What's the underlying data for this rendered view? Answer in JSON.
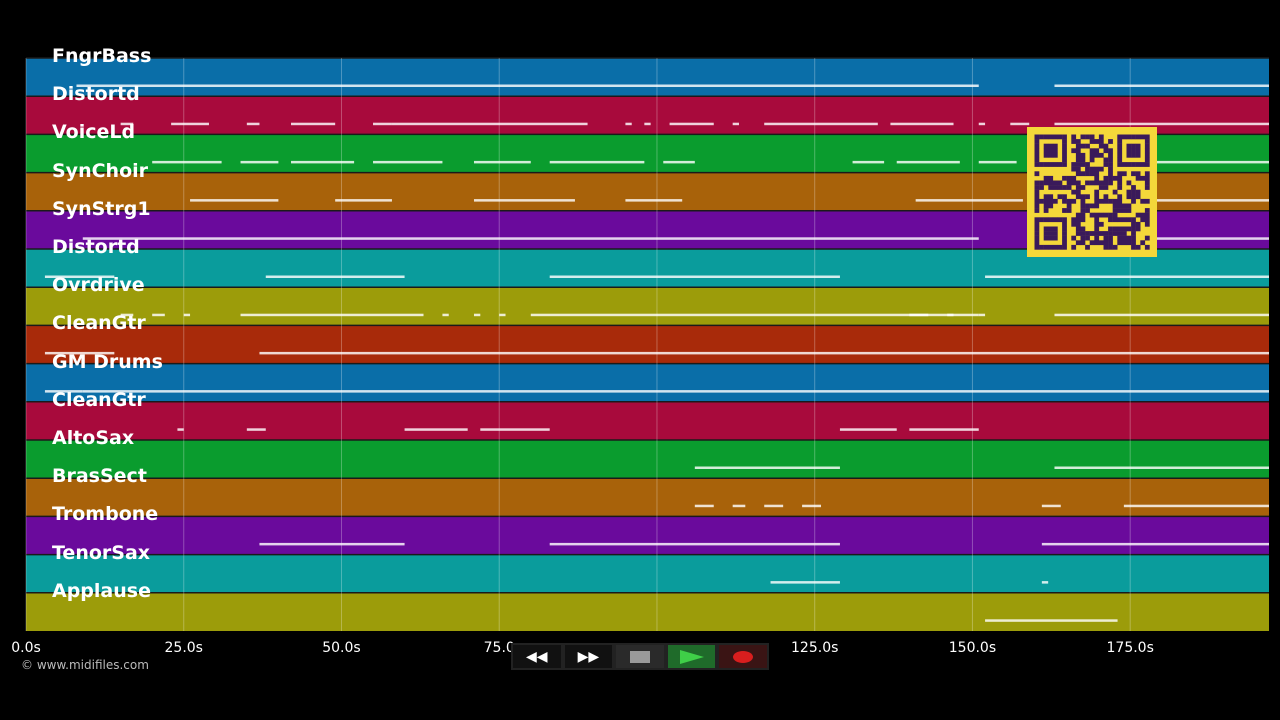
{
  "tracks": [
    {
      "label": "FngrBass",
      "color": "#0a6ea8"
    },
    {
      "label": "Distortd",
      "color": "#a80a3c"
    },
    {
      "label": "VoiceLd",
      "color": "#0a9c2e"
    },
    {
      "label": "SynChoir",
      "color": "#a8620a"
    },
    {
      "label": "SynStrg1",
      "color": "#6a0a9c"
    },
    {
      "label": "Distortd",
      "color": "#0a9c9c"
    },
    {
      "label": "Ovrdrive",
      "color": "#9c9c0a"
    },
    {
      "label": "CleanGtr",
      "color": "#a82a0a"
    },
    {
      "label": "GM Drums",
      "color": "#0a6ea8"
    },
    {
      "label": "CleanGtr",
      "color": "#a80a3c"
    },
    {
      "label": "AltoSax",
      "color": "#0a9c2e"
    },
    {
      "label": "BrasSect",
      "color": "#a8620a"
    },
    {
      "label": "Trombone",
      "color": "#6a0a9c"
    },
    {
      "label": "TenorSax",
      "color": "#0a9c9c"
    },
    {
      "label": "Applause",
      "color": "#9c9c0a"
    }
  ],
  "timeline": {
    "tick_values": [
      0,
      25,
      50,
      75,
      100,
      125,
      150,
      175
    ],
    "tick_labels": [
      "0.0s",
      "25.0s",
      "50.0s",
      "75.0",
      "",
      "125.0s",
      "150.0s",
      "175.0s"
    ],
    "max_seconds": 197
  },
  "copyright": "© www.midifiles.com",
  "transport": {
    "rewind_label": "◀◀",
    "forward_label": "▶▶"
  },
  "notes": [
    {
      "track": 0,
      "segments": [
        [
          8,
          151
        ],
        [
          163,
          197
        ]
      ]
    },
    {
      "track": 1,
      "segments": [
        [
          15,
          17
        ],
        [
          23,
          29
        ],
        [
          35,
          37
        ],
        [
          42,
          49
        ],
        [
          55,
          58
        ],
        [
          58,
          89
        ],
        [
          95,
          96
        ],
        [
          98,
          99
        ],
        [
          102,
          109
        ],
        [
          112,
          113
        ],
        [
          117,
          135
        ],
        [
          137,
          147
        ],
        [
          151,
          152
        ],
        [
          156,
          159
        ],
        [
          163,
          197
        ]
      ]
    },
    {
      "track": 2,
      "segments": [
        [
          20,
          31
        ],
        [
          34,
          40
        ],
        [
          42,
          52
        ],
        [
          55,
          66
        ],
        [
          71,
          80
        ],
        [
          83,
          98
        ],
        [
          101,
          106
        ],
        [
          131,
          136
        ],
        [
          138,
          148
        ],
        [
          151,
          157
        ],
        [
          159,
          163
        ],
        [
          177,
          197
        ]
      ]
    },
    {
      "track": 3,
      "segments": [
        [
          26,
          40
        ],
        [
          49,
          58
        ],
        [
          71,
          87
        ],
        [
          95,
          104
        ],
        [
          141,
          158
        ],
        [
          163,
          165
        ],
        [
          175,
          197
        ]
      ]
    },
    {
      "track": 4,
      "segments": [
        [
          9,
          151
        ],
        [
          163,
          197
        ]
      ]
    },
    {
      "track": 5,
      "segments": [
        [
          3,
          14
        ],
        [
          38,
          60
        ],
        [
          83,
          129
        ],
        [
          152,
          197
        ]
      ]
    },
    {
      "track": 6,
      "segments": [
        [
          15,
          17
        ],
        [
          20,
          22
        ],
        [
          25,
          26
        ],
        [
          34,
          63
        ],
        [
          66,
          67
        ],
        [
          71,
          72
        ],
        [
          75,
          76
        ],
        [
          80,
          151
        ],
        [
          140,
          143
        ],
        [
          146,
          147
        ],
        [
          151,
          152
        ],
        [
          163,
          197
        ]
      ]
    },
    {
      "track": 7,
      "segments": [
        [
          3,
          14
        ],
        [
          37,
          197
        ]
      ]
    },
    {
      "track": 8,
      "segments": [
        [
          3,
          9
        ],
        [
          9,
          197
        ]
      ]
    },
    {
      "track": 9,
      "segments": [
        [
          24,
          25
        ],
        [
          35,
          38
        ],
        [
          60,
          70
        ],
        [
          72,
          83
        ],
        [
          129,
          138
        ],
        [
          140,
          151
        ]
      ]
    },
    {
      "track": 10,
      "segments": [
        [
          106,
          129
        ],
        [
          163,
          197
        ]
      ]
    },
    {
      "track": 11,
      "segments": [
        [
          106,
          109
        ],
        [
          112,
          114
        ],
        [
          117,
          120
        ],
        [
          123,
          126
        ],
        [
          161,
          164
        ],
        [
          174,
          197
        ]
      ]
    },
    {
      "track": 12,
      "segments": [
        [
          37,
          60
        ],
        [
          83,
          129
        ],
        [
          161,
          197
        ]
      ]
    },
    {
      "track": 13,
      "segments": [
        [
          118,
          129
        ],
        [
          161,
          162
        ]
      ]
    },
    {
      "track": 14,
      "segments": [
        [
          152,
          173
        ]
      ]
    }
  ]
}
